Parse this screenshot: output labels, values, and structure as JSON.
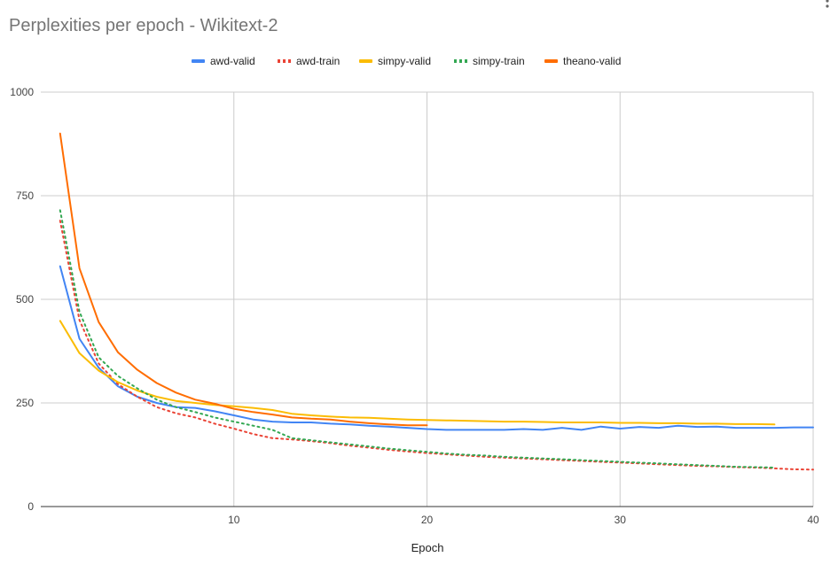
{
  "chart_data": {
    "type": "line",
    "title": "Perplexities per epoch - Wikitext-2",
    "xlabel": "Epoch",
    "ylabel": "",
    "xlim": [
      0,
      40
    ],
    "ylim": [
      0,
      1000
    ],
    "x_ticks": [
      10,
      20,
      30,
      40
    ],
    "y_ticks": [
      0,
      250,
      500,
      750,
      1000
    ],
    "grid": true,
    "legend_position": "top",
    "series": [
      {
        "name": "awd-valid",
        "color": "#4285f4",
        "dash": "solid",
        "x": [
          1,
          2,
          3,
          4,
          5,
          6,
          7,
          8,
          9,
          10,
          11,
          12,
          13,
          14,
          15,
          16,
          17,
          18,
          19,
          20,
          21,
          22,
          23,
          24,
          25,
          26,
          27,
          28,
          29,
          30,
          31,
          32,
          33,
          34,
          35,
          36,
          37,
          38,
          39,
          40
        ],
        "values": [
          580,
          405,
          335,
          290,
          265,
          250,
          240,
          238,
          230,
          220,
          210,
          205,
          203,
          203,
          200,
          198,
          195,
          193,
          190,
          187,
          185,
          185,
          185,
          185,
          187,
          185,
          190,
          185,
          193,
          188,
          192,
          190,
          195,
          192,
          193,
          190,
          190,
          190,
          191,
          191
        ]
      },
      {
        "name": "awd-train",
        "color": "#ea4335",
        "dash": "dotted",
        "x": [
          1,
          2,
          3,
          4,
          5,
          6,
          7,
          8,
          9,
          10,
          11,
          12,
          13,
          14,
          15,
          16,
          17,
          18,
          19,
          20,
          21,
          22,
          23,
          24,
          25,
          26,
          27,
          28,
          29,
          30,
          31,
          32,
          33,
          34,
          35,
          36,
          37,
          38,
          39,
          40
        ],
        "values": [
          690,
          450,
          345,
          295,
          265,
          240,
          225,
          215,
          200,
          188,
          175,
          165,
          162,
          158,
          153,
          147,
          142,
          137,
          133,
          129,
          126,
          123,
          120,
          118,
          116,
          114,
          112,
          110,
          108,
          106,
          104,
          102,
          100,
          98,
          97,
          95,
          94,
          92,
          90,
          89
        ]
      },
      {
        "name": "simpy-valid",
        "color": "#fbbc04",
        "dash": "solid",
        "x": [
          1,
          2,
          3,
          4,
          5,
          6,
          7,
          8,
          9,
          10,
          11,
          12,
          13,
          14,
          15,
          16,
          17,
          18,
          19,
          20,
          21,
          22,
          23,
          24,
          25,
          26,
          27,
          28,
          29,
          30,
          31,
          32,
          33,
          34,
          35,
          36,
          37,
          38
        ],
        "values": [
          448,
          370,
          328,
          300,
          280,
          265,
          255,
          250,
          245,
          242,
          238,
          233,
          224,
          220,
          217,
          215,
          214,
          212,
          210,
          209,
          208,
          207,
          206,
          205,
          205,
          204,
          203,
          203,
          203,
          202,
          202,
          201,
          201,
          200,
          200,
          199,
          199,
          198
        ]
      },
      {
        "name": "simpy-train",
        "color": "#34a853",
        "dash": "dotted",
        "x": [
          1,
          2,
          3,
          4,
          5,
          6,
          7,
          8,
          9,
          10,
          11,
          12,
          13,
          14,
          15,
          16,
          17,
          18,
          19,
          20,
          21,
          22,
          23,
          24,
          25,
          26,
          27,
          28,
          29,
          30,
          31,
          32,
          33,
          34,
          35,
          36,
          37,
          38
        ],
        "values": [
          715,
          470,
          360,
          315,
          285,
          258,
          240,
          228,
          215,
          205,
          195,
          185,
          165,
          160,
          155,
          150,
          145,
          140,
          136,
          132,
          128,
          125,
          123,
          120,
          118,
          116,
          114,
          112,
          110,
          108,
          106,
          104,
          102,
          100,
          98,
          96,
          95,
          94
        ]
      },
      {
        "name": "theano-valid",
        "color": "#ff6d01",
        "dash": "solid",
        "x": [
          1,
          2,
          3,
          4,
          5,
          6,
          7,
          8,
          9,
          10,
          11,
          12,
          13,
          14,
          15,
          16,
          17,
          18,
          19,
          20
        ],
        "values": [
          900,
          575,
          445,
          372,
          330,
          298,
          275,
          258,
          248,
          236,
          228,
          222,
          215,
          212,
          210,
          205,
          201,
          198,
          196,
          196
        ]
      }
    ]
  }
}
